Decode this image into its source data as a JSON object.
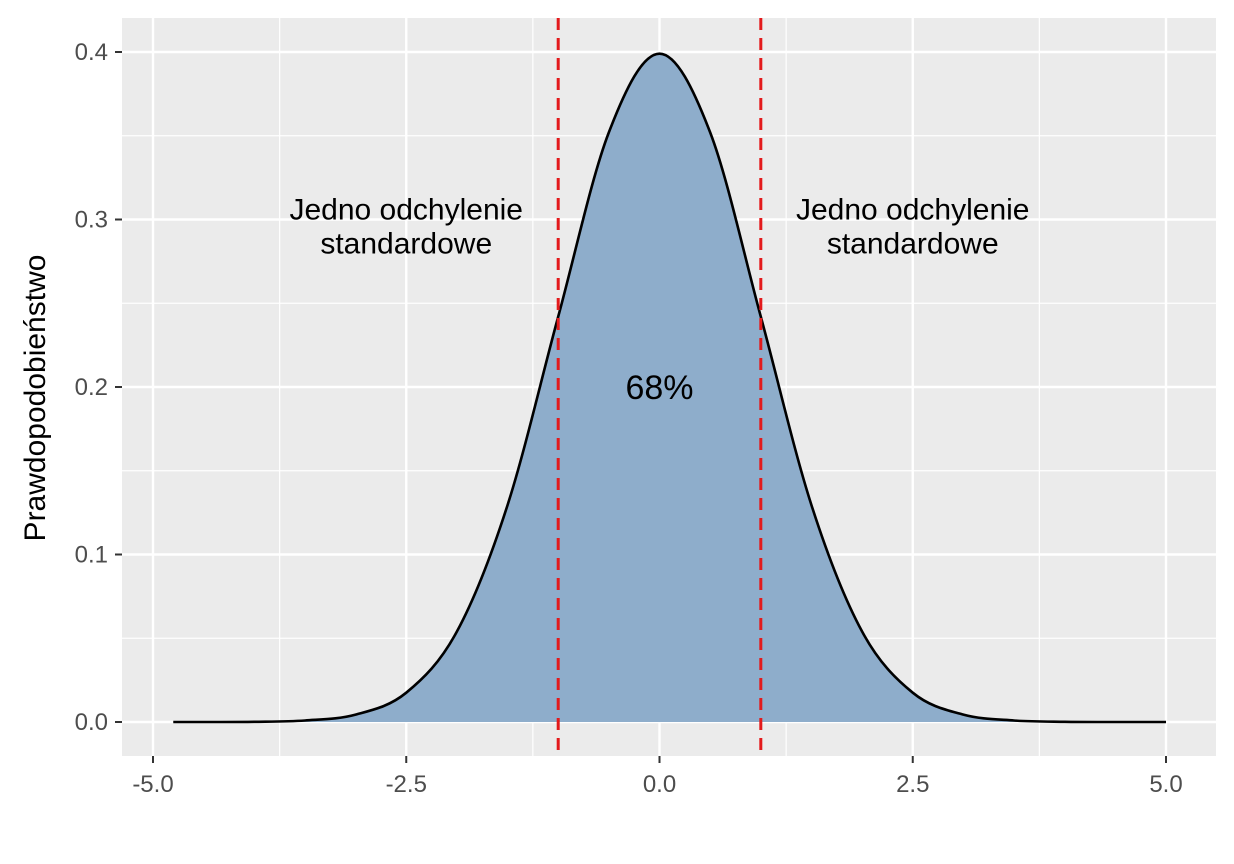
{
  "chart_data": {
    "type": "area",
    "title": "",
    "xlabel": "",
    "ylabel": "Prawdopodobieństwo",
    "xlim": [
      -5.0,
      5.0
    ],
    "ylim": [
      0.0,
      0.4
    ],
    "x_ticks": [
      "-5.0",
      "-2.5",
      "0.0",
      "2.5",
      "5.0"
    ],
    "y_ticks": [
      "0.0",
      "0.1",
      "0.2",
      "0.3",
      "0.4"
    ],
    "series": [
      {
        "x": [
          -4.8,
          -4.5,
          -4.0,
          -3.5,
          -3.0,
          -2.5,
          -2.0,
          -1.5,
          -1.0,
          -0.5,
          0.0,
          0.5,
          1.0,
          1.5,
          2.0,
          2.5,
          3.0,
          3.5,
          4.0,
          4.5,
          5.0
        ],
        "y": [
          0.0,
          0.0,
          0.0001,
          0.0009,
          0.0044,
          0.0175,
          0.054,
          0.1295,
          0.242,
          0.352,
          0.399,
          0.352,
          0.242,
          0.1295,
          0.054,
          0.0175,
          0.0044,
          0.0009,
          0.0001,
          0.0,
          0.0
        ]
      }
    ],
    "vlines": [
      -1.0,
      1.0
    ],
    "annotations": [
      {
        "text": "Jedno odchylenie\nstandardowe",
        "x": -2.5,
        "y": 0.29
      },
      {
        "text": "Jedno odchylenie\nstandardowe",
        "x": 2.5,
        "y": 0.29
      },
      {
        "text": "68%",
        "x": 0.0,
        "y": 0.2
      }
    ],
    "fill_color": "#8eadcb",
    "curve_color": "#000000",
    "vline_color": "#e31a1c",
    "panel_background": "#ebebeb",
    "grid": true
  }
}
